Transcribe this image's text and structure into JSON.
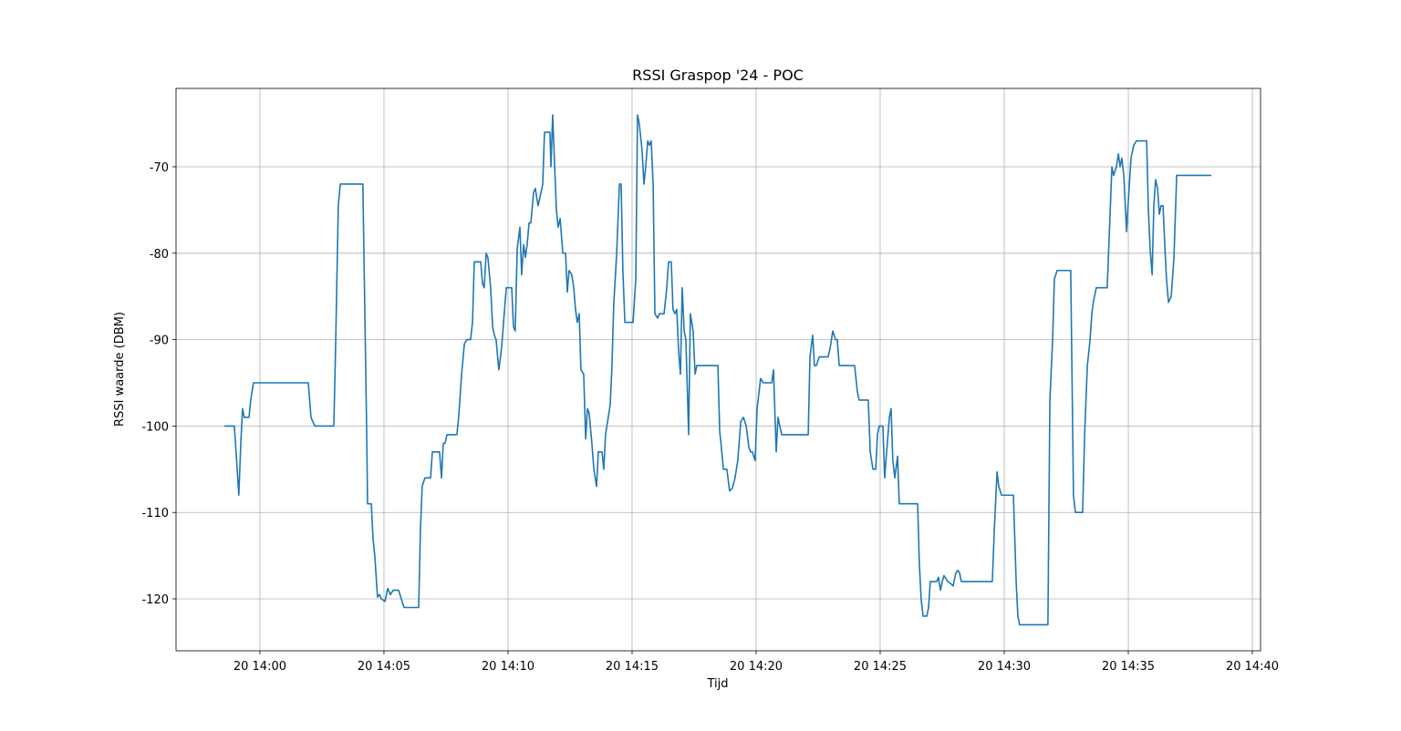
{
  "chart_data": {
    "type": "line",
    "title": "RSSI Graspop '24 - POC",
    "xlabel": "Tijd",
    "ylabel": "RSSI waarde (DBM)",
    "color": "#1f77b4",
    "grid": true,
    "xlim": [
      -3.38,
      40.33
    ],
    "ylim": [
      -126.01,
      -60.93
    ],
    "xticks": [
      {
        "value": 0,
        "label": "20 14:00"
      },
      {
        "value": 5,
        "label": "20 14:05"
      },
      {
        "value": 10,
        "label": "20 14:10"
      },
      {
        "value": 15,
        "label": "20 14:15"
      },
      {
        "value": 20,
        "label": "20 14:20"
      },
      {
        "value": 25,
        "label": "20 14:25"
      },
      {
        "value": 30,
        "label": "20 14:30"
      },
      {
        "value": 35,
        "label": "20 14:35"
      },
      {
        "value": 40,
        "label": "20 14:40"
      }
    ],
    "yticks": [
      -120,
      -110,
      -100,
      -90,
      -80,
      -70
    ],
    "x": [
      -1.43,
      -1.03,
      -0.96,
      -0.85,
      -0.77,
      -0.7,
      -0.63,
      -0.44,
      -0.37,
      -0.26,
      1.95,
      2.06,
      2.21,
      2.98,
      3.05,
      3.16,
      3.24,
      4.15,
      4.3,
      4.34,
      4.49,
      4.56,
      4.63,
      4.74,
      4.82,
      4.89,
      5.04,
      5.15,
      5.26,
      5.37,
      5.59,
      5.7,
      5.81,
      6.4,
      6.47,
      6.54,
      6.65,
      6.88,
      6.95,
      7.24,
      7.32,
      7.39,
      7.46,
      7.54,
      7.94,
      8.01,
      8.13,
      8.24,
      8.35,
      8.49,
      8.57,
      8.64,
      8.9,
      8.97,
      9.04,
      9.12,
      9.19,
      9.3,
      9.38,
      9.45,
      9.52,
      9.63,
      9.74,
      9.82,
      9.93,
      10.15,
      10.22,
      10.29,
      10.37,
      10.48,
      10.55,
      10.63,
      10.7,
      10.77,
      10.85,
      10.92,
      11.03,
      11.1,
      11.21,
      11.29,
      11.4,
      11.47,
      11.69,
      11.73,
      11.8,
      11.88,
      11.95,
      12.02,
      12.1,
      12.21,
      12.32,
      12.39,
      12.46,
      12.57,
      12.65,
      12.72,
      12.79,
      12.87,
      12.94,
      13.05,
      13.13,
      13.2,
      13.27,
      13.38,
      13.46,
      13.57,
      13.64,
      13.79,
      13.86,
      13.93,
      14.04,
      14.12,
      14.19,
      14.26,
      14.38,
      14.49,
      14.56,
      14.63,
      14.71,
      15.04,
      15.15,
      15.22,
      15.29,
      15.4,
      15.48,
      15.55,
      15.63,
      15.7,
      15.77,
      15.85,
      15.92,
      16.03,
      16.1,
      16.29,
      16.4,
      16.47,
      16.58,
      16.65,
      16.73,
      16.8,
      16.88,
      16.95,
      17.02,
      17.1,
      17.17,
      17.28,
      17.35,
      17.46,
      17.54,
      17.61,
      18.46,
      18.53,
      18.6,
      18.68,
      18.82,
      18.93,
      19.04,
      19.15,
      19.26,
      19.38,
      19.49,
      19.6,
      19.71,
      19.78,
      19.85,
      19.96,
      20.04,
      20.18,
      20.29,
      20.63,
      20.7,
      20.81,
      20.88,
      21.03,
      22.1,
      22.17,
      22.28,
      22.35,
      22.43,
      22.54,
      22.9,
      22.98,
      23.09,
      23.2,
      23.27,
      23.35,
      23.97,
      24.08,
      24.15,
      24.52,
      24.6,
      24.71,
      24.82,
      24.89,
      24.96,
      25.11,
      25.18,
      25.26,
      25.37,
      25.44,
      25.51,
      25.59,
      25.7,
      25.77,
      26.51,
      26.58,
      26.65,
      26.73,
      26.88,
      26.95,
      27.02,
      27.28,
      27.35,
      27.43,
      27.5,
      27.57,
      27.72,
      27.83,
      27.94,
      28.05,
      28.13,
      28.2,
      28.27,
      29.52,
      29.6,
      29.71,
      29.78,
      29.89,
      30.37,
      30.48,
      30.55,
      30.62,
      31.76,
      31.84,
      31.95,
      32.02,
      32.13,
      32.68,
      32.79,
      32.87,
      33.16,
      33.24,
      33.35,
      33.46,
      33.53,
      33.6,
      33.71,
      34.15,
      34.34,
      34.41,
      34.52,
      34.6,
      34.67,
      34.74,
      34.82,
      34.93,
      35.0,
      35.11,
      35.22,
      35.33,
      35.74,
      35.81,
      35.88,
      35.96,
      36.03,
      36.1,
      36.18,
      36.25,
      36.32,
      36.4,
      36.47,
      36.54,
      36.62,
      36.73,
      36.84,
      36.95,
      38.35
    ],
    "values": [
      -100,
      -100,
      -103,
      -108,
      -102,
      -98,
      -99,
      -99,
      -97,
      -95,
      -95,
      -99,
      -100,
      -100,
      -91,
      -74.5,
      -72,
      -72,
      -100,
      -109,
      -109,
      -113,
      -115,
      -119.8,
      -119.5,
      -120,
      -120.3,
      -118.8,
      -119.5,
      -119,
      -119,
      -120,
      -121,
      -121,
      -112,
      -107,
      -106,
      -106,
      -103,
      -103,
      -106,
      -102,
      -102,
      -101,
      -101,
      -99,
      -94,
      -90.5,
      -90,
      -90,
      -88,
      -81,
      -81,
      -83.5,
      -84,
      -80,
      -80.5,
      -84,
      -88.5,
      -89.5,
      -90,
      -93.5,
      -91,
      -88,
      -84,
      -84,
      -88.5,
      -89,
      -79.5,
      -77,
      -82.5,
      -79,
      -80.5,
      -79,
      -76.5,
      -76.5,
      -73,
      -72.5,
      -74.5,
      -73.5,
      -72,
      -66,
      -66,
      -70,
      -64,
      -70,
      -75,
      -77,
      -76,
      -80,
      -80,
      -84.5,
      -82,
      -82.5,
      -84,
      -86.5,
      -88,
      -87,
      -93.5,
      -94,
      -101.5,
      -98,
      -98.5,
      -102,
      -105,
      -107,
      -103,
      -103,
      -105,
      -101,
      -99,
      -97.5,
      -93,
      -86,
      -80,
      -72,
      -72,
      -82,
      -88,
      -88,
      -83,
      -64,
      -65,
      -68,
      -72,
      -70,
      -67,
      -67.5,
      -67,
      -72,
      -87,
      -87.5,
      -87,
      -87,
      -84,
      -81,
      -81,
      -86.5,
      -87,
      -86.5,
      -91.5,
      -94,
      -84,
      -89,
      -90,
      -101,
      -87,
      -89,
      -94,
      -93,
      -93,
      -100.5,
      -102.5,
      -105,
      -105,
      -107.5,
      -107.2,
      -106,
      -104,
      -99.5,
      -99,
      -100,
      -102.5,
      -103,
      -103,
      -104,
      -98,
      -94.5,
      -95,
      -95,
      -93.5,
      -103,
      -99,
      -101,
      -101,
      -92,
      -89.5,
      -93,
      -93,
      -92,
      -92,
      -91,
      -89,
      -90,
      -90,
      -93,
      -93,
      -96,
      -97,
      -97,
      -103,
      -105,
      -105,
      -101,
      -100,
      -100,
      -106,
      -103,
      -99,
      -98,
      -104,
      -106,
      -103.5,
      -109,
      -109,
      -116,
      -120,
      -122,
      -122,
      -121,
      -118,
      -118,
      -117.5,
      -119,
      -118,
      -117.3,
      -118,
      -118.2,
      -118.5,
      -117,
      -116.7,
      -117,
      -118,
      -118,
      -112,
      -105.3,
      -107,
      -108,
      -108,
      -118,
      -122,
      -123,
      -123,
      -97,
      -90,
      -83,
      -82,
      -82,
      -108,
      -110,
      -110,
      -101,
      -93,
      -90,
      -87,
      -85.5,
      -84,
      -84,
      -70,
      -71,
      -70,
      -68.5,
      -70,
      -69,
      -71,
      -77.5,
      -74,
      -69,
      -67.5,
      -67,
      -67,
      -75,
      -79.5,
      -82.5,
      -74.5,
      -71.5,
      -72.5,
      -75.5,
      -74.5,
      -74.5,
      -79,
      -83,
      -85.7,
      -85,
      -80.5,
      -71,
      -71
    ]
  }
}
